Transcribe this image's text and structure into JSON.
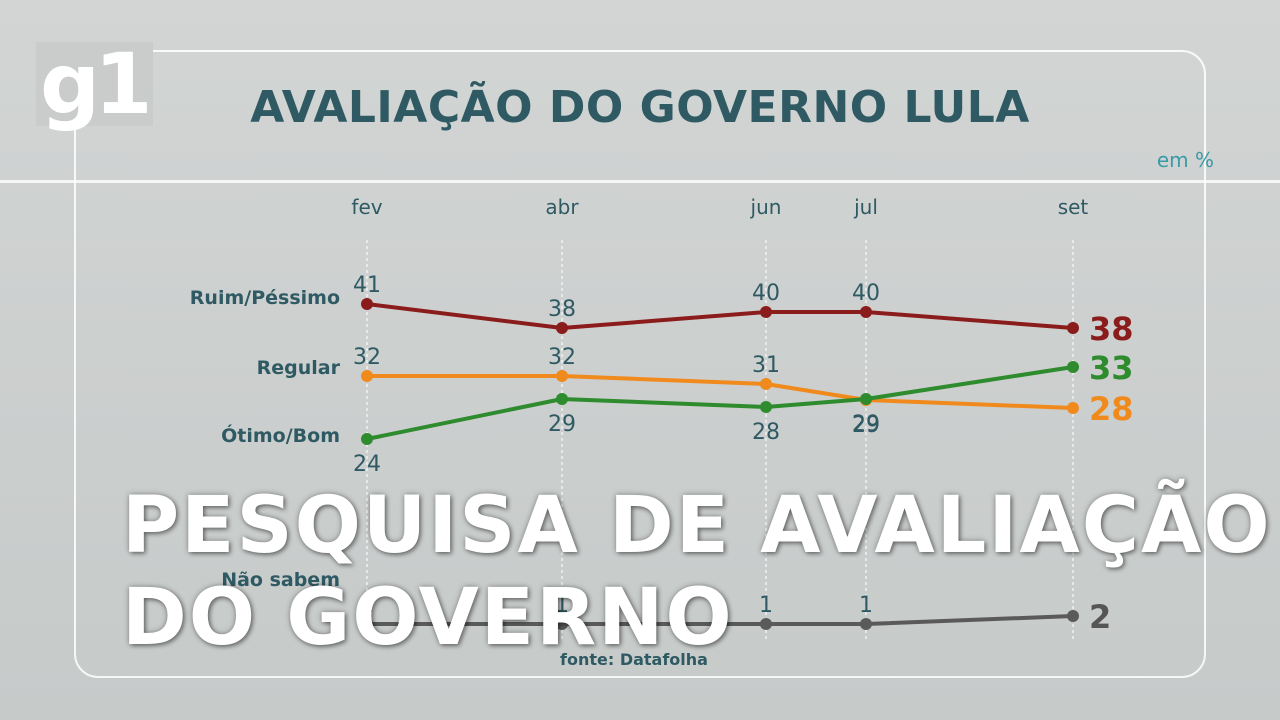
{
  "logo": "g1",
  "title": "AVALIAÇÃO DO GOVERNO LULA",
  "unit": "em %",
  "overlay": {
    "line1": "PESQUISA DE AVALIAÇÃO",
    "line2": "DO GOVERNO"
  },
  "source": "fonte: Datafolha",
  "chart_data": {
    "type": "line",
    "categories": [
      "fev",
      "abr",
      "jun",
      "jul",
      "set"
    ],
    "series": [
      {
        "name": "Ruim/Péssimo",
        "values": [
          41,
          38,
          40,
          40,
          38
        ],
        "color": "#8b1c1c"
      },
      {
        "name": "Regular",
        "values": [
          32,
          32,
          31,
          29,
          28
        ],
        "color": "#f08a1c"
      },
      {
        "name": "Ótimo/Bom",
        "values": [
          24,
          29,
          28,
          29,
          33
        ],
        "color": "#2e8b2e"
      },
      {
        "name": "Não sabem",
        "values": [
          1,
          1,
          1,
          1,
          2
        ],
        "color": "#5a5a5a"
      }
    ],
    "colors": {
      "title": "#2f5a63",
      "unit": "#3a9aa6",
      "labels": "#2f5a63"
    }
  }
}
